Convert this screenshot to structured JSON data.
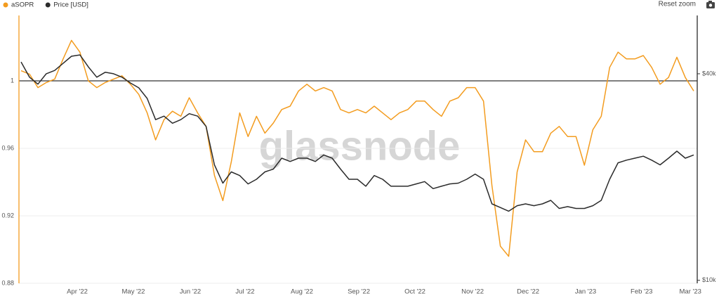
{
  "chart_data": {
    "type": "line",
    "watermark": "glassnode",
    "reset_zoom": "Reset zoom",
    "xticks": [
      {
        "value": 6.68,
        "label": "Apr '22"
      },
      {
        "value": 13.36,
        "label": "May '22"
      },
      {
        "value": 20.13,
        "label": "Jun '22"
      },
      {
        "value": 26.64,
        "label": "Jul '22"
      },
      {
        "value": 33.4,
        "label": "Aug '22"
      },
      {
        "value": 40.17,
        "label": "Sep '22"
      },
      {
        "value": 46.85,
        "label": "Oct '22"
      },
      {
        "value": 53.7,
        "label": "Nov '22"
      },
      {
        "value": 60.3,
        "label": "Dec '22"
      },
      {
        "value": 67.14,
        "label": "Jan '23"
      },
      {
        "value": 73.8,
        "label": "Feb '23"
      },
      {
        "value": 79.6,
        "label": "Mar '23"
      }
    ],
    "ylim": [
      0.88,
      1.04
    ],
    "yticks": [
      0.88,
      0.92,
      0.96,
      1
    ],
    "reference_line": 1,
    "y2lim": [
      9800,
      60000
    ],
    "y2scale": "log",
    "y2ticks": [
      {
        "value": 10000,
        "label": "$10k"
      },
      {
        "value": 40000,
        "label": "$40k"
      }
    ],
    "grid": true,
    "series": [
      {
        "name": "aSOPR",
        "color": "#f39c1f",
        "axis": "y",
        "values": [
          1.006,
          1.004,
          0.996,
          0.999,
          1.001,
          1.013,
          1.024,
          1.017,
          1,
          0.996,
          0.999,
          1.001,
          1.003,
          0.998,
          0.992,
          0.981,
          0.965,
          0.977,
          0.982,
          0.979,
          0.99,
          0.981,
          0.973,
          0.944,
          0.929,
          0.952,
          0.981,
          0.967,
          0.979,
          0.969,
          0.975,
          0.983,
          0.985,
          0.994,
          0.998,
          0.994,
          0.996,
          0.994,
          0.983,
          0.981,
          0.983,
          0.981,
          0.985,
          0.981,
          0.977,
          0.981,
          0.983,
          0.988,
          0.988,
          0.983,
          0.979,
          0.988,
          0.99,
          0.996,
          0.996,
          0.988,
          0.938,
          0.902,
          0.896,
          0.946,
          0.965,
          0.958,
          0.958,
          0.969,
          0.973,
          0.967,
          0.967,
          0.95,
          0.971,
          0.979,
          1.008,
          1.017,
          1.013,
          1.013,
          1.015,
          1.008,
          0.998,
          1.002,
          1.014,
          1.002,
          0.994
        ]
      },
      {
        "name": "Price [USD]",
        "color": "#2b2b2b",
        "axis": "y2",
        "values": [
          43300,
          39100,
          37300,
          40000,
          40900,
          42900,
          45000,
          45400,
          41900,
          39100,
          40400,
          40000,
          39100,
          37600,
          36400,
          33900,
          29400,
          30100,
          28700,
          29400,
          30600,
          30100,
          28100,
          21700,
          19200,
          20700,
          20200,
          19100,
          19700,
          20700,
          21100,
          22700,
          22200,
          22700,
          22700,
          22200,
          23200,
          22700,
          21100,
          19700,
          19700,
          18800,
          20200,
          19700,
          18800,
          18800,
          18800,
          19100,
          19400,
          18500,
          18800,
          19100,
          19200,
          19700,
          20400,
          19700,
          16700,
          16300,
          15900,
          16500,
          16700,
          16500,
          16700,
          17100,
          16200,
          16400,
          16200,
          16200,
          16500,
          17100,
          19700,
          22000,
          22400,
          22700,
          23000,
          22400,
          21700,
          22700,
          23800,
          22700,
          23200
        ]
      }
    ]
  }
}
